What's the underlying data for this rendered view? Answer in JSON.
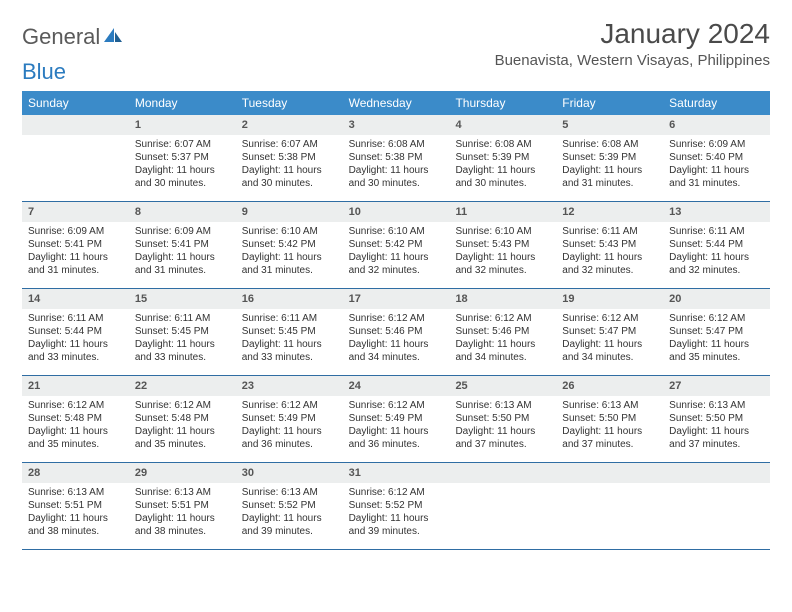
{
  "brand": {
    "part1": "General",
    "part2": "Blue"
  },
  "title": "January 2024",
  "location": "Buenavista, Western Visayas, Philippines",
  "colors": {
    "header_bg": "#3b8bc9",
    "header_text": "#ffffff",
    "daynum_bg": "#eceeee",
    "week_border": "#2f6da3",
    "brand_gray": "#5a5a5a",
    "brand_blue": "#2b7bbf"
  },
  "day_names": [
    "Sunday",
    "Monday",
    "Tuesday",
    "Wednesday",
    "Thursday",
    "Friday",
    "Saturday"
  ],
  "weeks": [
    [
      {
        "day": "",
        "text": ""
      },
      {
        "day": "1",
        "sunrise": "6:07 AM",
        "sunset": "5:37 PM",
        "daylight": "11 hours and 30 minutes."
      },
      {
        "day": "2",
        "sunrise": "6:07 AM",
        "sunset": "5:38 PM",
        "daylight": "11 hours and 30 minutes."
      },
      {
        "day": "3",
        "sunrise": "6:08 AM",
        "sunset": "5:38 PM",
        "daylight": "11 hours and 30 minutes."
      },
      {
        "day": "4",
        "sunrise": "6:08 AM",
        "sunset": "5:39 PM",
        "daylight": "11 hours and 30 minutes."
      },
      {
        "day": "5",
        "sunrise": "6:08 AM",
        "sunset": "5:39 PM",
        "daylight": "11 hours and 31 minutes."
      },
      {
        "day": "6",
        "sunrise": "6:09 AM",
        "sunset": "5:40 PM",
        "daylight": "11 hours and 31 minutes."
      }
    ],
    [
      {
        "day": "7",
        "sunrise": "6:09 AM",
        "sunset": "5:41 PM",
        "daylight": "11 hours and 31 minutes."
      },
      {
        "day": "8",
        "sunrise": "6:09 AM",
        "sunset": "5:41 PM",
        "daylight": "11 hours and 31 minutes."
      },
      {
        "day": "9",
        "sunrise": "6:10 AM",
        "sunset": "5:42 PM",
        "daylight": "11 hours and 31 minutes."
      },
      {
        "day": "10",
        "sunrise": "6:10 AM",
        "sunset": "5:42 PM",
        "daylight": "11 hours and 32 minutes."
      },
      {
        "day": "11",
        "sunrise": "6:10 AM",
        "sunset": "5:43 PM",
        "daylight": "11 hours and 32 minutes."
      },
      {
        "day": "12",
        "sunrise": "6:11 AM",
        "sunset": "5:43 PM",
        "daylight": "11 hours and 32 minutes."
      },
      {
        "day": "13",
        "sunrise": "6:11 AM",
        "sunset": "5:44 PM",
        "daylight": "11 hours and 32 minutes."
      }
    ],
    [
      {
        "day": "14",
        "sunrise": "6:11 AM",
        "sunset": "5:44 PM",
        "daylight": "11 hours and 33 minutes."
      },
      {
        "day": "15",
        "sunrise": "6:11 AM",
        "sunset": "5:45 PM",
        "daylight": "11 hours and 33 minutes."
      },
      {
        "day": "16",
        "sunrise": "6:11 AM",
        "sunset": "5:45 PM",
        "daylight": "11 hours and 33 minutes."
      },
      {
        "day": "17",
        "sunrise": "6:12 AM",
        "sunset": "5:46 PM",
        "daylight": "11 hours and 34 minutes."
      },
      {
        "day": "18",
        "sunrise": "6:12 AM",
        "sunset": "5:46 PM",
        "daylight": "11 hours and 34 minutes."
      },
      {
        "day": "19",
        "sunrise": "6:12 AM",
        "sunset": "5:47 PM",
        "daylight": "11 hours and 34 minutes."
      },
      {
        "day": "20",
        "sunrise": "6:12 AM",
        "sunset": "5:47 PM",
        "daylight": "11 hours and 35 minutes."
      }
    ],
    [
      {
        "day": "21",
        "sunrise": "6:12 AM",
        "sunset": "5:48 PM",
        "daylight": "11 hours and 35 minutes."
      },
      {
        "day": "22",
        "sunrise": "6:12 AM",
        "sunset": "5:48 PM",
        "daylight": "11 hours and 35 minutes."
      },
      {
        "day": "23",
        "sunrise": "6:12 AM",
        "sunset": "5:49 PM",
        "daylight": "11 hours and 36 minutes."
      },
      {
        "day": "24",
        "sunrise": "6:12 AM",
        "sunset": "5:49 PM",
        "daylight": "11 hours and 36 minutes."
      },
      {
        "day": "25",
        "sunrise": "6:13 AM",
        "sunset": "5:50 PM",
        "daylight": "11 hours and 37 minutes."
      },
      {
        "day": "26",
        "sunrise": "6:13 AM",
        "sunset": "5:50 PM",
        "daylight": "11 hours and 37 minutes."
      },
      {
        "day": "27",
        "sunrise": "6:13 AM",
        "sunset": "5:50 PM",
        "daylight": "11 hours and 37 minutes."
      }
    ],
    [
      {
        "day": "28",
        "sunrise": "6:13 AM",
        "sunset": "5:51 PM",
        "daylight": "11 hours and 38 minutes."
      },
      {
        "day": "29",
        "sunrise": "6:13 AM",
        "sunset": "5:51 PM",
        "daylight": "11 hours and 38 minutes."
      },
      {
        "day": "30",
        "sunrise": "6:13 AM",
        "sunset": "5:52 PM",
        "daylight": "11 hours and 39 minutes."
      },
      {
        "day": "31",
        "sunrise": "6:12 AM",
        "sunset": "5:52 PM",
        "daylight": "11 hours and 39 minutes."
      },
      {
        "day": "",
        "text": ""
      },
      {
        "day": "",
        "text": ""
      },
      {
        "day": "",
        "text": ""
      }
    ]
  ],
  "labels": {
    "sunrise": "Sunrise:",
    "sunset": "Sunset:",
    "daylight": "Daylight:"
  }
}
